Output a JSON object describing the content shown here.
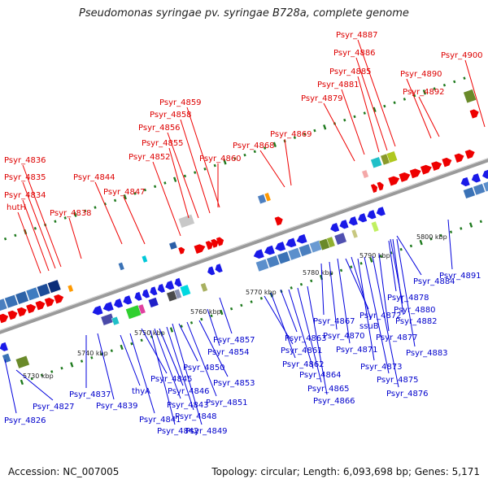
{
  "title": "Pseudomonas syringae pv. syringae B728a, complete genome",
  "footer": {
    "accession": "Accession: NC_007005",
    "summary": "Topology: circular; Length: 6,093,698 bp; Genes: 5,171"
  },
  "colors": {
    "forward_gene_label": "#dd0000",
    "reverse_gene_label": "#0000cc",
    "backbone": "#9a9a9a",
    "tick_major": "#1e7a1e"
  },
  "kbp_labels": [
    "5730 kbp",
    "5740 kbp",
    "5750 kbp",
    "5760 kbp",
    "5770 kbp",
    "5780 kbp",
    "5790 kbp",
    "5800 kbp"
  ],
  "forward_genes": [
    "Psyr_4836",
    "Psyr_4835",
    "Psyr_4834",
    "hutH",
    "Psyr_4838",
    "Psyr_4844",
    "Psyr_4847",
    "Psyr_4852",
    "Psyr_4855",
    "Psyr_4856",
    "Psyr_4858",
    "Psyr_4859",
    "Psyr_4860",
    "Psyr_4868",
    "Psyr_4869",
    "Psyr_4879",
    "Psyr_4881",
    "Psyr_4885",
    "Psyr_4886",
    "Psyr_4887",
    "Psyr_4890",
    "Psyr_4892",
    "Psyr_4900"
  ],
  "reverse_genes": [
    "Psyr_4826",
    "Psyr_4827",
    "Psyr_4837",
    "Psyr_4839",
    "thyA",
    "Psyr_4841",
    "Psyr_4842",
    "Psyr_4843",
    "Psyr_4845",
    "Psyr_4846",
    "Psyr_4848",
    "Psyr_4849",
    "Psyr_4850",
    "Psyr_4851",
    "Psyr_4853",
    "Psyr_4854",
    "Psyr_4857",
    "Psyr_4861",
    "Psyr_4862",
    "Psyr_4863",
    "Psyr_4864",
    "Psyr_4865",
    "Psyr_4866",
    "Psyr_4867",
    "Psyr_4870",
    "Psyr_4871",
    "Psyr_4872",
    "ssuB",
    "Psyr_4873",
    "Psyr_4875",
    "Psyr_4876",
    "Psyr_4877",
    "Psyr_4878",
    "Psyr_4880",
    "Psyr_4882",
    "Psyr_4883",
    "Psyr_4884",
    "Psyr_4891"
  ]
}
